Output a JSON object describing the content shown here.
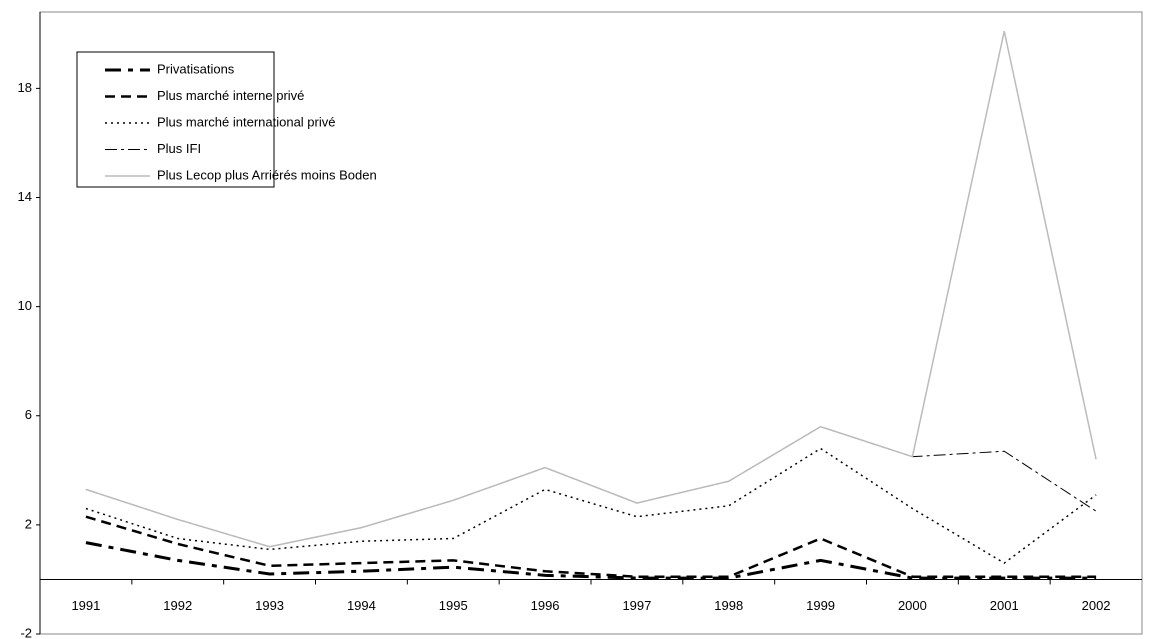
{
  "chart_data": {
    "type": "line",
    "categories": [
      "1991",
      "1992",
      "1993",
      "1994",
      "1995",
      "1996",
      "1997",
      "1998",
      "1999",
      "2000",
      "2001",
      "2002"
    ],
    "series": [
      {
        "name": "Privatisations",
        "color": "#000000",
        "values": [
          1.35,
          0.7,
          0.2,
          0.3,
          0.45,
          0.15,
          0.05,
          0.05,
          0.7,
          0.05,
          0.05,
          0.05
        ]
      },
      {
        "name": "Plus marché interne privé",
        "color": "#000000",
        "values": [
          2.3,
          1.3,
          0.5,
          0.6,
          0.7,
          0.3,
          0.1,
          0.1,
          1.5,
          0.1,
          0.1,
          0.1
        ]
      },
      {
        "name": "Plus marché international privé",
        "color": "#000000",
        "values": [
          2.6,
          1.5,
          1.1,
          1.4,
          1.5,
          3.3,
          2.3,
          2.7,
          4.8,
          2.6,
          0.6,
          3.1
        ]
      },
      {
        "name": "Plus IFI",
        "color": "#000000",
        "values": [
          3.3,
          2.2,
          1.2,
          1.9,
          2.9,
          4.1,
          2.8,
          3.6,
          5.6,
          4.5,
          4.7,
          2.5
        ]
      },
      {
        "name": "Plus Lecop plus Arriérés moins Boden",
        "color": "#bbbbbb",
        "values": [
          3.3,
          2.2,
          1.2,
          1.9,
          2.9,
          4.1,
          2.8,
          3.6,
          5.6,
          4.5,
          20.1,
          4.4
        ]
      }
    ],
    "ylim": [
      -2,
      20.8
    ],
    "yticks": [
      -2,
      2,
      6,
      10,
      14,
      18
    ],
    "grid": false,
    "legend": "top-left"
  }
}
